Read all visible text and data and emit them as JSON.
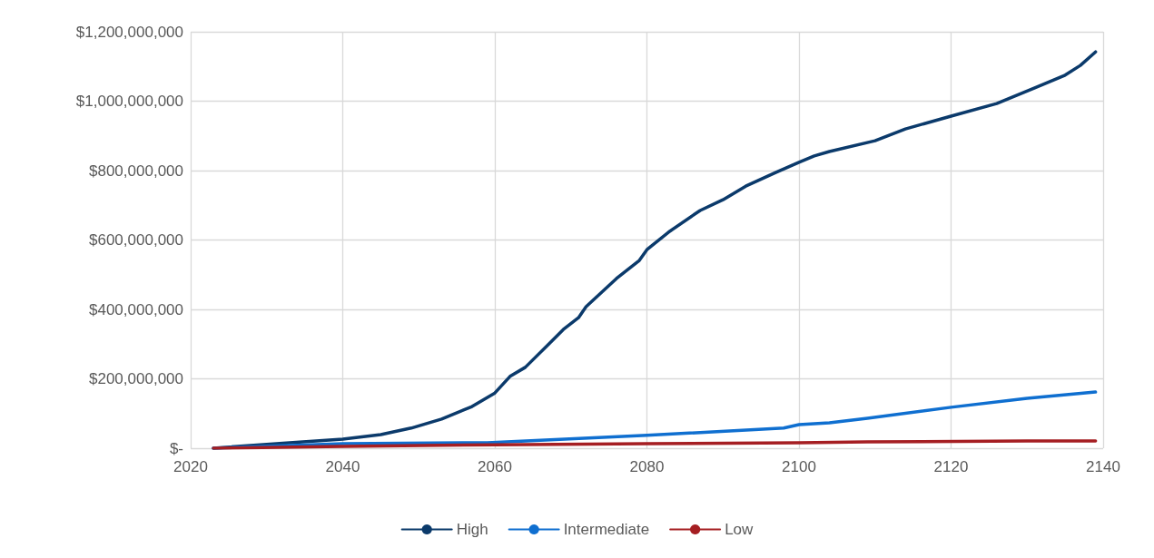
{
  "chart_data": {
    "type": "line",
    "xlim": [
      2020,
      2140
    ],
    "xticks": [
      2020,
      2040,
      2060,
      2080,
      2100,
      2120,
      2140
    ],
    "ylim": [
      0,
      1200000000
    ],
    "yticks": [
      {
        "value": 0,
        "label": "$-"
      },
      {
        "value": 200000000,
        "label": "$200,000,000"
      },
      {
        "value": 400000000,
        "label": "$400,000,000"
      },
      {
        "value": 600000000,
        "label": "$600,000,000"
      },
      {
        "value": 800000000,
        "label": "$800,000,000"
      },
      {
        "value": 1000000000,
        "label": "$1,000,000,000"
      },
      {
        "value": 1200000000,
        "label": "$1,200,000,000"
      }
    ],
    "grid": true,
    "legend": "bottom",
    "marker": "none",
    "line_style": "solid",
    "series": [
      {
        "name": "High",
        "color": "#0b3a6b",
        "x": [
          2023,
          2033,
          2040,
          2045,
          2049,
          2053,
          2057,
          2060,
          2062,
          2064,
          2067,
          2069,
          2071,
          2072,
          2076,
          2079,
          2080,
          2083,
          2087,
          2090,
          2093,
          2097,
          2100,
          2102,
          2104,
          2110,
          2114,
          2120,
          2126,
          2131,
          2135,
          2137,
          2139
        ],
        "values": [
          0,
          16000000,
          26000000,
          39000000,
          58000000,
          84000000,
          120000000,
          159000000,
          207000000,
          233000000,
          298000000,
          342000000,
          376000000,
          408000000,
          489000000,
          541000000,
          572000000,
          625000000,
          685000000,
          716000000,
          755000000,
          795000000,
          824000000,
          842000000,
          855000000,
          886000000,
          920000000,
          957000000,
          993000000,
          1038000000,
          1075000000,
          1103000000,
          1142000000
        ]
      },
      {
        "name": "Intermediate",
        "color": "#0f6fd0",
        "x": [
          2023,
          2040,
          2059,
          2080,
          2098,
          2100,
          2104,
          2109,
          2120,
          2130,
          2139
        ],
        "values": [
          0,
          13000000,
          16000000,
          37000000,
          58000000,
          68000000,
          73000000,
          86000000,
          118000000,
          144000000,
          162000000
        ]
      },
      {
        "name": "Low",
        "color": "#a51e22",
        "x": [
          2023,
          2040,
          2060,
          2080,
          2100,
          2109,
          2130,
          2139
        ],
        "values": [
          0,
          5000000,
          10000000,
          13000000,
          16000000,
          18000000,
          21000000,
          21000000
        ]
      }
    ]
  }
}
